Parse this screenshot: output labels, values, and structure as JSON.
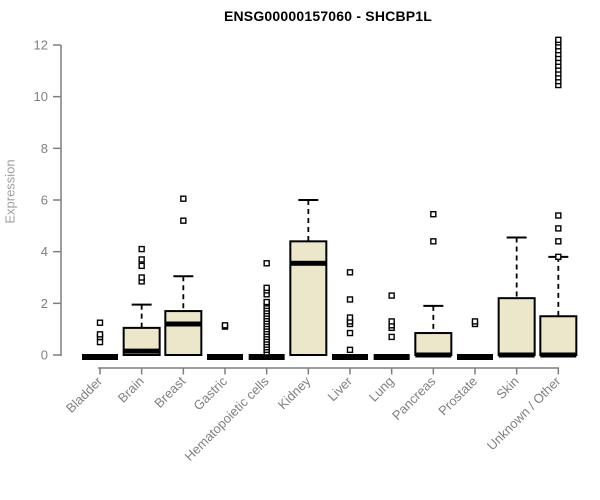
{
  "title": "ENSG00000157060 - SHCBP1L",
  "colors": {
    "background": "#ffffff",
    "box_fill": "#ece6ca",
    "box_stroke": "#000000",
    "median": "#000000",
    "whisker": "#000000",
    "outlier_stroke": "#000000",
    "outlier_fill": "#ffffff",
    "axis": "#7f7f7f",
    "tick_label": "#808080",
    "axis_title": "#9e9e9e",
    "title_text": "#000000"
  },
  "chart_data": {
    "type": "boxplot",
    "title": "ENSG00000157060 - SHCBP1L",
    "ylabel": "Expression",
    "xlabel": "",
    "ylim": [
      0,
      12
    ],
    "yticks": [
      0,
      2,
      4,
      6,
      8,
      10,
      12
    ],
    "grid": false,
    "legend": false,
    "categories": [
      "Bladder",
      "Brain",
      "Breast",
      "Gastric",
      "Hematopoietic cells",
      "Kidney",
      "Liver",
      "Lung",
      "Pancreas",
      "Prostate",
      "Skin",
      "Unknown / Other"
    ],
    "series": [
      {
        "category": "Bladder",
        "q1": 0,
        "median": 0,
        "q3": 0,
        "whisker_low": 0,
        "whisker_high": 0,
        "outliers": [
          0.5,
          0.7,
          0.8,
          1.25
        ]
      },
      {
        "category": "Brain",
        "q1": 0,
        "median": 0.15,
        "q3": 1.05,
        "whisker_low": 0,
        "whisker_high": 1.95,
        "outliers": [
          2.85,
          3.0,
          3.45,
          3.7,
          4.1
        ]
      },
      {
        "category": "Breast",
        "q1": 0,
        "median": 1.2,
        "q3": 1.7,
        "whisker_low": 0,
        "whisker_high": 3.05,
        "outliers": [
          5.2,
          6.05
        ]
      },
      {
        "category": "Gastric",
        "q1": 0,
        "median": 0,
        "q3": 0,
        "whisker_low": 0,
        "whisker_high": 0,
        "outliers": [
          1.1,
          1.15
        ]
      },
      {
        "category": "Hematopoietic cells",
        "q1": 0,
        "median": 0,
        "q3": 0,
        "whisker_low": 0,
        "whisker_high": 0,
        "outliers": [
          0.1,
          0.2,
          0.3,
          0.4,
          0.5,
          0.6,
          0.7,
          0.8,
          0.9,
          1.0,
          1.1,
          1.2,
          1.3,
          1.4,
          1.5,
          1.6,
          1.7,
          1.8,
          1.9,
          2.0,
          2.05,
          2.35,
          2.5,
          2.6,
          3.55
        ]
      },
      {
        "category": "Kidney",
        "q1": 0,
        "median": 3.55,
        "q3": 4.4,
        "whisker_low": 0,
        "whisker_high": 6.0,
        "outliers": []
      },
      {
        "category": "Liver",
        "q1": 0,
        "median": 0,
        "q3": 0,
        "whisker_low": 0,
        "whisker_high": 0,
        "outliers": [
          0.2,
          0.85,
          1.2,
          1.3,
          1.45,
          2.15,
          3.2
        ]
      },
      {
        "category": "Lung",
        "q1": 0,
        "median": 0,
        "q3": 0,
        "whisker_low": 0,
        "whisker_high": 0,
        "outliers": [
          0.7,
          1.05,
          1.15,
          1.3,
          2.3
        ]
      },
      {
        "category": "Pancreas",
        "q1": 0,
        "median": 0,
        "q3": 0.85,
        "whisker_low": 0,
        "whisker_high": 1.9,
        "outliers": [
          4.4,
          5.45
        ]
      },
      {
        "category": "Prostate",
        "q1": 0,
        "median": 0,
        "q3": 0,
        "whisker_low": 0,
        "whisker_high": 0,
        "outliers": [
          1.2,
          1.3
        ]
      },
      {
        "category": "Skin",
        "q1": 0,
        "median": 0,
        "q3": 2.2,
        "whisker_low": 0,
        "whisker_high": 4.55,
        "outliers": []
      },
      {
        "category": "Unknown / Other",
        "q1": 0,
        "median": 0,
        "q3": 1.5,
        "whisker_low": 0,
        "whisker_high": 3.8,
        "outliers": [
          3.8,
          4.4,
          4.9,
          5.4,
          10.45,
          10.6,
          10.75,
          10.9,
          11.05,
          11.2,
          11.35,
          11.5,
          11.65,
          11.8,
          11.95,
          12.1,
          12.2
        ]
      }
    ]
  }
}
